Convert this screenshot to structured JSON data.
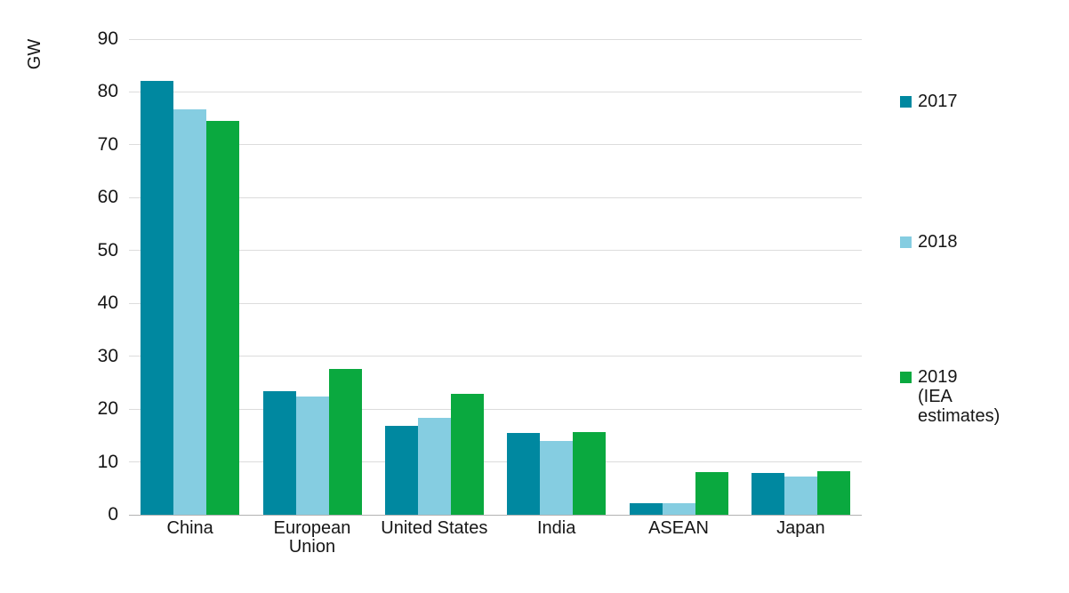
{
  "chart_data": {
    "type": "bar",
    "title": "",
    "unit_label": "GW",
    "xlabel": "",
    "ylabel": "GW",
    "categories": [
      "China",
      "European Union",
      "United States",
      "India",
      "ASEAN",
      "Japan"
    ],
    "category_label_lines": [
      [
        "China"
      ],
      [
        "European",
        "Union"
      ],
      [
        "United States"
      ],
      [
        "India"
      ],
      [
        "ASEAN"
      ],
      [
        "Japan"
      ]
    ],
    "series": [
      {
        "name": "2017",
        "legend_lines": [
          "2017"
        ],
        "color": "#0088a0",
        "values": [
          82.1,
          23.3,
          16.9,
          15.5,
          2.2,
          7.9
        ]
      },
      {
        "name": "2018",
        "legend_lines": [
          "2018"
        ],
        "color": "#85cde1",
        "values": [
          76.7,
          22.3,
          18.3,
          13.9,
          2.2,
          7.2
        ]
      },
      {
        "name": "2019 (IEA estimates)",
        "legend_lines": [
          "2019",
          "(IEA",
          "estimates)"
        ],
        "color": "#0aa93f",
        "values": [
          74.6,
          27.6,
          22.8,
          15.7,
          8.1,
          8.3
        ]
      }
    ],
    "ylim": [
      0,
      90
    ],
    "ytick_step": 10,
    "yticks": [
      0,
      10,
      20,
      30,
      40,
      50,
      60,
      70,
      80,
      90
    ],
    "grid": "horizontal",
    "legend_position": "right",
    "colors": {
      "gridline": "#dcdcdc",
      "axis_line": "#b3b3b3",
      "text": "#161616",
      "background": "#ffffff"
    }
  }
}
